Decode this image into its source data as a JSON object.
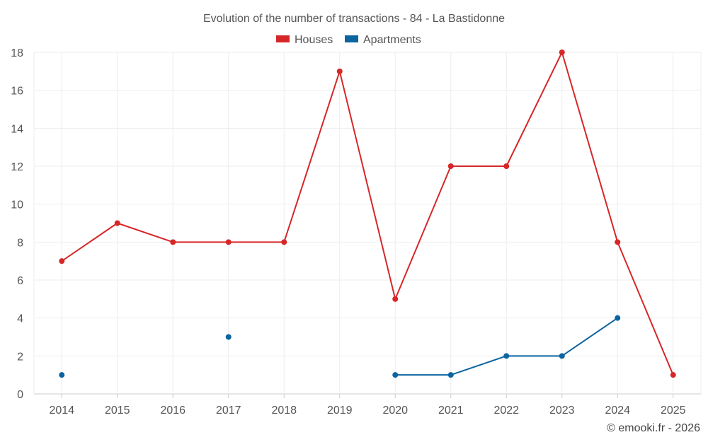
{
  "chart_data": {
    "type": "line",
    "title": "Evolution of the number of transactions - 84 - La Bastidonne",
    "categories": [
      "2014",
      "2015",
      "2016",
      "2017",
      "2018",
      "2019",
      "2020",
      "2021",
      "2022",
      "2023",
      "2024",
      "2025"
    ],
    "series": [
      {
        "name": "Houses",
        "color": "#d62728",
        "values": [
          7,
          9,
          8,
          8,
          8,
          17,
          5,
          12,
          12,
          18,
          8,
          1
        ]
      },
      {
        "name": "Apartments",
        "color": "#0a64a0",
        "values": [
          1,
          null,
          null,
          3,
          null,
          null,
          1,
          1,
          2,
          2,
          4,
          null
        ]
      }
    ],
    "ylim": [
      0,
      18
    ],
    "yticks": [
      0,
      2,
      4,
      6,
      8,
      10,
      12,
      14,
      16,
      18
    ],
    "xlabel": "",
    "ylabel": "",
    "grid": true,
    "legend_position": "top-center"
  },
  "credit": "© emooki.fr - 2026"
}
